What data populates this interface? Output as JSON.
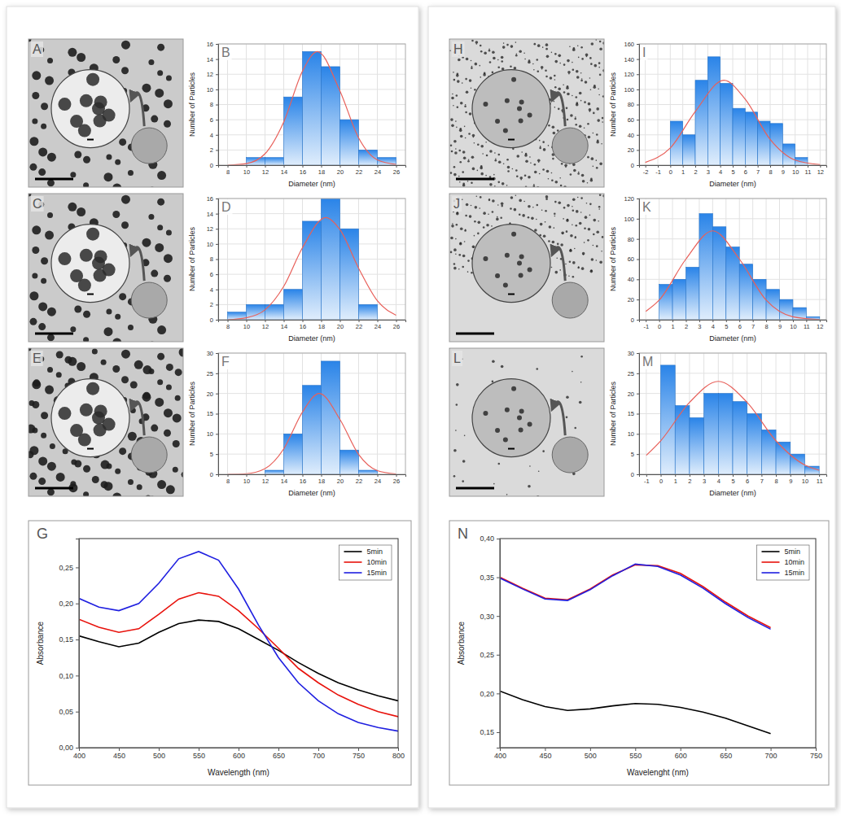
{
  "images": [
    {
      "label": "A"
    },
    {
      "label": "C"
    },
    {
      "label": "E"
    },
    {
      "label": "H"
    },
    {
      "label": "J"
    },
    {
      "label": "L"
    }
  ],
  "chart_data": [
    {
      "type": "histogram",
      "title": "B",
      "x_label": "Diameter (nm)",
      "y_label": "Number of Particles",
      "bins": [
        10,
        12,
        14,
        16,
        18,
        20,
        22,
        24,
        26
      ],
      "counts": [
        1,
        1,
        9,
        15,
        13,
        6,
        2,
        1
      ],
      "color": "#2a84e8",
      "fit": {
        "x": [
          8,
          10,
          12,
          14,
          16,
          17.6,
          20,
          22,
          24,
          26
        ],
        "y": [
          0,
          0.2,
          1.5,
          5.7,
          12.4,
          15,
          9.8,
          3.6,
          0.7,
          0.1
        ],
        "color": "#e8605a"
      },
      "xlim": [
        7,
        27
      ],
      "xticks": [
        8,
        10,
        12,
        14,
        16,
        18,
        20,
        22,
        24,
        26
      ],
      "ylim": [
        0,
        16
      ],
      "yticks": [
        0,
        2,
        4,
        6,
        8,
        10,
        12,
        14,
        16
      ],
      "grid": true
    },
    {
      "type": "histogram",
      "title": "D",
      "x_label": "Diameter (nm)",
      "y_label": "Number of Particles",
      "bins": [
        8,
        10,
        12,
        14,
        16,
        18,
        20,
        22,
        24
      ],
      "counts": [
        1,
        2,
        2,
        4,
        13,
        16,
        12,
        2
      ],
      "color": "#2a84e8",
      "fit": {
        "x": [
          8,
          10,
          12,
          14,
          16,
          18.5,
          20,
          22,
          24,
          26
        ],
        "y": [
          0,
          0.25,
          1.3,
          4.4,
          9.5,
          13.5,
          11.9,
          6.8,
          2.5,
          0.6
        ],
        "color": "#e8605a"
      },
      "xlim": [
        7,
        27
      ],
      "xticks": [
        8,
        10,
        12,
        14,
        16,
        18,
        20,
        22,
        24,
        26
      ],
      "ylim": [
        0,
        16
      ],
      "yticks": [
        0,
        2,
        4,
        6,
        8,
        10,
        12,
        14,
        16
      ],
      "grid": true
    },
    {
      "type": "histogram",
      "title": "F",
      "x_label": "Diameter (nm)",
      "y_label": "Number of Particles",
      "bins": [
        12,
        14,
        16,
        18,
        20,
        22,
        24
      ],
      "counts": [
        1,
        10,
        22,
        28,
        6,
        1
      ],
      "color": "#2a84e8",
      "fit": {
        "x": [
          8,
          10,
          12,
          14,
          16,
          17.8,
          20,
          22,
          24,
          26
        ],
        "y": [
          0,
          0.15,
          1.4,
          6.3,
          15.4,
          20,
          13.6,
          4.9,
          0.9,
          0.1
        ],
        "color": "#e8605a"
      },
      "xlim": [
        7,
        27
      ],
      "xticks": [
        8,
        10,
        12,
        14,
        16,
        18,
        20,
        22,
        24,
        26
      ],
      "ylim": [
        0,
        30
      ],
      "yticks": [
        0,
        5,
        10,
        15,
        20,
        25,
        30
      ],
      "grid": true
    },
    {
      "type": "histogram",
      "title": "I",
      "x_label": "Diameter (nm)",
      "y_label": "Number of Particles",
      "bins": [
        0,
        1,
        2,
        3,
        4,
        5,
        6,
        7,
        8,
        9,
        10,
        11
      ],
      "counts": [
        58,
        40,
        112,
        143,
        108,
        75,
        70,
        58,
        55,
        28,
        10
      ],
      "color": "#2a84e8",
      "fit": {
        "x": [
          -2,
          0,
          2,
          4.3,
          6,
          8,
          10,
          12
        ],
        "y": [
          3.6,
          22.7,
          70.8,
          112,
          87,
          34,
          6.7,
          0.6
        ],
        "color": "#e8605a"
      },
      "xlim": [
        -2.5,
        12.5
      ],
      "xticks": [
        -2,
        -1,
        0,
        1,
        2,
        3,
        4,
        5,
        6,
        7,
        8,
        9,
        10,
        11,
        12
      ],
      "ylim": [
        0,
        160
      ],
      "yticks": [
        0,
        20,
        40,
        60,
        80,
        100,
        120,
        140,
        160
      ],
      "grid": true
    },
    {
      "type": "histogram",
      "title": "K",
      "x_label": "Diameter (nm)",
      "y_label": "Number of Particles",
      "bins": [
        0,
        1,
        2,
        3,
        4,
        5,
        6,
        7,
        8,
        9,
        10,
        11,
        12
      ],
      "counts": [
        35,
        40,
        52,
        105,
        92,
        72,
        55,
        40,
        30,
        20,
        12,
        3
      ],
      "color": "#2a84e8",
      "fit": {
        "x": [
          -1,
          0,
          2,
          4,
          6,
          8,
          10,
          12
        ],
        "y": [
          8.3,
          19.4,
          60,
          88,
          60,
          19.4,
          2.9,
          0.2
        ],
        "color": "#e8605a"
      },
      "xlim": [
        -1.5,
        12.5
      ],
      "xticks": [
        -1,
        0,
        1,
        2,
        3,
        4,
        5,
        6,
        7,
        8,
        9,
        10,
        11,
        12
      ],
      "ylim": [
        0,
        120
      ],
      "yticks": [
        0,
        20,
        40,
        60,
        80,
        100,
        120
      ],
      "grid": true
    },
    {
      "type": "histogram",
      "title": "M",
      "x_label": "Diameter (nm)",
      "y_label": "Number of Particles",
      "bins": [
        0,
        1,
        2,
        3,
        4,
        5,
        6,
        7,
        8,
        9,
        10,
        11
      ],
      "counts": [
        27,
        17,
        14,
        20,
        20,
        18,
        15,
        11,
        8,
        5,
        2
      ],
      "color": "#2a84e8",
      "fit": {
        "x": [
          -1,
          0,
          2,
          4,
          6,
          8,
          10,
          11
        ],
        "y": [
          4.7,
          8.3,
          17.8,
          23,
          17.8,
          8.3,
          2.3,
          1.0
        ],
        "color": "#e8605a"
      },
      "xlim": [
        -1.5,
        11.5
      ],
      "xticks": [
        -1,
        0,
        1,
        2,
        3,
        4,
        5,
        6,
        7,
        8,
        9,
        10,
        11
      ],
      "ylim": [
        0,
        30
      ],
      "yticks": [
        0,
        5,
        10,
        15,
        20,
        25,
        30
      ],
      "grid": true
    },
    {
      "type": "line",
      "title": "G",
      "x_label": "Wavelength (nm)",
      "y_label": "Absorbance",
      "x": [
        400,
        425,
        450,
        475,
        500,
        525,
        550,
        575,
        600,
        625,
        650,
        675,
        700,
        725,
        750,
        775,
        800
      ],
      "series": [
        {
          "name": "5min",
          "color": "#000000",
          "values": [
            0.155,
            0.147,
            0.14,
            0.145,
            0.16,
            0.172,
            0.177,
            0.175,
            0.165,
            0.15,
            0.135,
            0.118,
            0.103,
            0.09,
            0.08,
            0.072,
            0.065
          ]
        },
        {
          "name": "10min",
          "color": "#e8120c",
          "values": [
            0.178,
            0.167,
            0.16,
            0.165,
            0.185,
            0.206,
            0.215,
            0.21,
            0.19,
            0.165,
            0.138,
            0.11,
            0.09,
            0.073,
            0.06,
            0.05,
            0.043
          ]
        },
        {
          "name": "15min",
          "color": "#1f1fe0",
          "values": [
            0.207,
            0.195,
            0.19,
            0.2,
            0.228,
            0.262,
            0.272,
            0.26,
            0.22,
            0.17,
            0.125,
            0.09,
            0.065,
            0.047,
            0.035,
            0.028,
            0.023
          ]
        }
      ],
      "xlim": [
        400,
        800
      ],
      "xticks": [
        400,
        450,
        500,
        550,
        600,
        650,
        700,
        750,
        800
      ],
      "ylim": [
        0,
        0.29
      ],
      "yticks": [
        {
          "value": 0,
          "label": "0,00"
        },
        {
          "value": 0.05,
          "label": "0,05"
        },
        {
          "value": 0.1,
          "label": "0,10"
        },
        {
          "value": 0.15,
          "label": "0,15"
        },
        {
          "value": 0.2,
          "label": "0,20"
        },
        {
          "value": 0.25,
          "label": "0,25"
        }
      ],
      "legend": "top-right"
    },
    {
      "type": "line",
      "title": "N",
      "x_label": "Wavelenght (nm)",
      "y_label": "Absorbance",
      "x": [
        400,
        425,
        450,
        475,
        500,
        525,
        550,
        575,
        600,
        625,
        650,
        675,
        700
      ],
      "series": [
        {
          "name": "5min",
          "color": "#000000",
          "values": [
            0.203,
            0.192,
            0.183,
            0.178,
            0.18,
            0.184,
            0.187,
            0.186,
            0.182,
            0.176,
            0.168,
            0.158,
            0.148
          ]
        },
        {
          "name": "10min",
          "color": "#e8120c",
          "values": [
            0.35,
            0.336,
            0.323,
            0.321,
            0.335,
            0.353,
            0.366,
            0.365,
            0.355,
            0.338,
            0.318,
            0.3,
            0.285
          ]
        },
        {
          "name": "15min",
          "color": "#1f1fe0",
          "values": [
            0.349,
            0.335,
            0.322,
            0.32,
            0.334,
            0.352,
            0.367,
            0.364,
            0.353,
            0.336,
            0.316,
            0.298,
            0.283
          ]
        }
      ],
      "xlim": [
        400,
        750
      ],
      "xticks": [
        400,
        450,
        500,
        550,
        600,
        650,
        700,
        750
      ],
      "ylim": [
        0.13,
        0.4
      ],
      "yticks": [
        {
          "value": 0.15,
          "label": "0,15"
        },
        {
          "value": 0.2,
          "label": "0,20"
        },
        {
          "value": 0.25,
          "label": "0,25"
        },
        {
          "value": 0.3,
          "label": "0,30"
        },
        {
          "value": 0.35,
          "label": "0,35"
        },
        {
          "value": 0.4,
          "label": "0,40"
        }
      ],
      "legend": "top-right"
    }
  ]
}
